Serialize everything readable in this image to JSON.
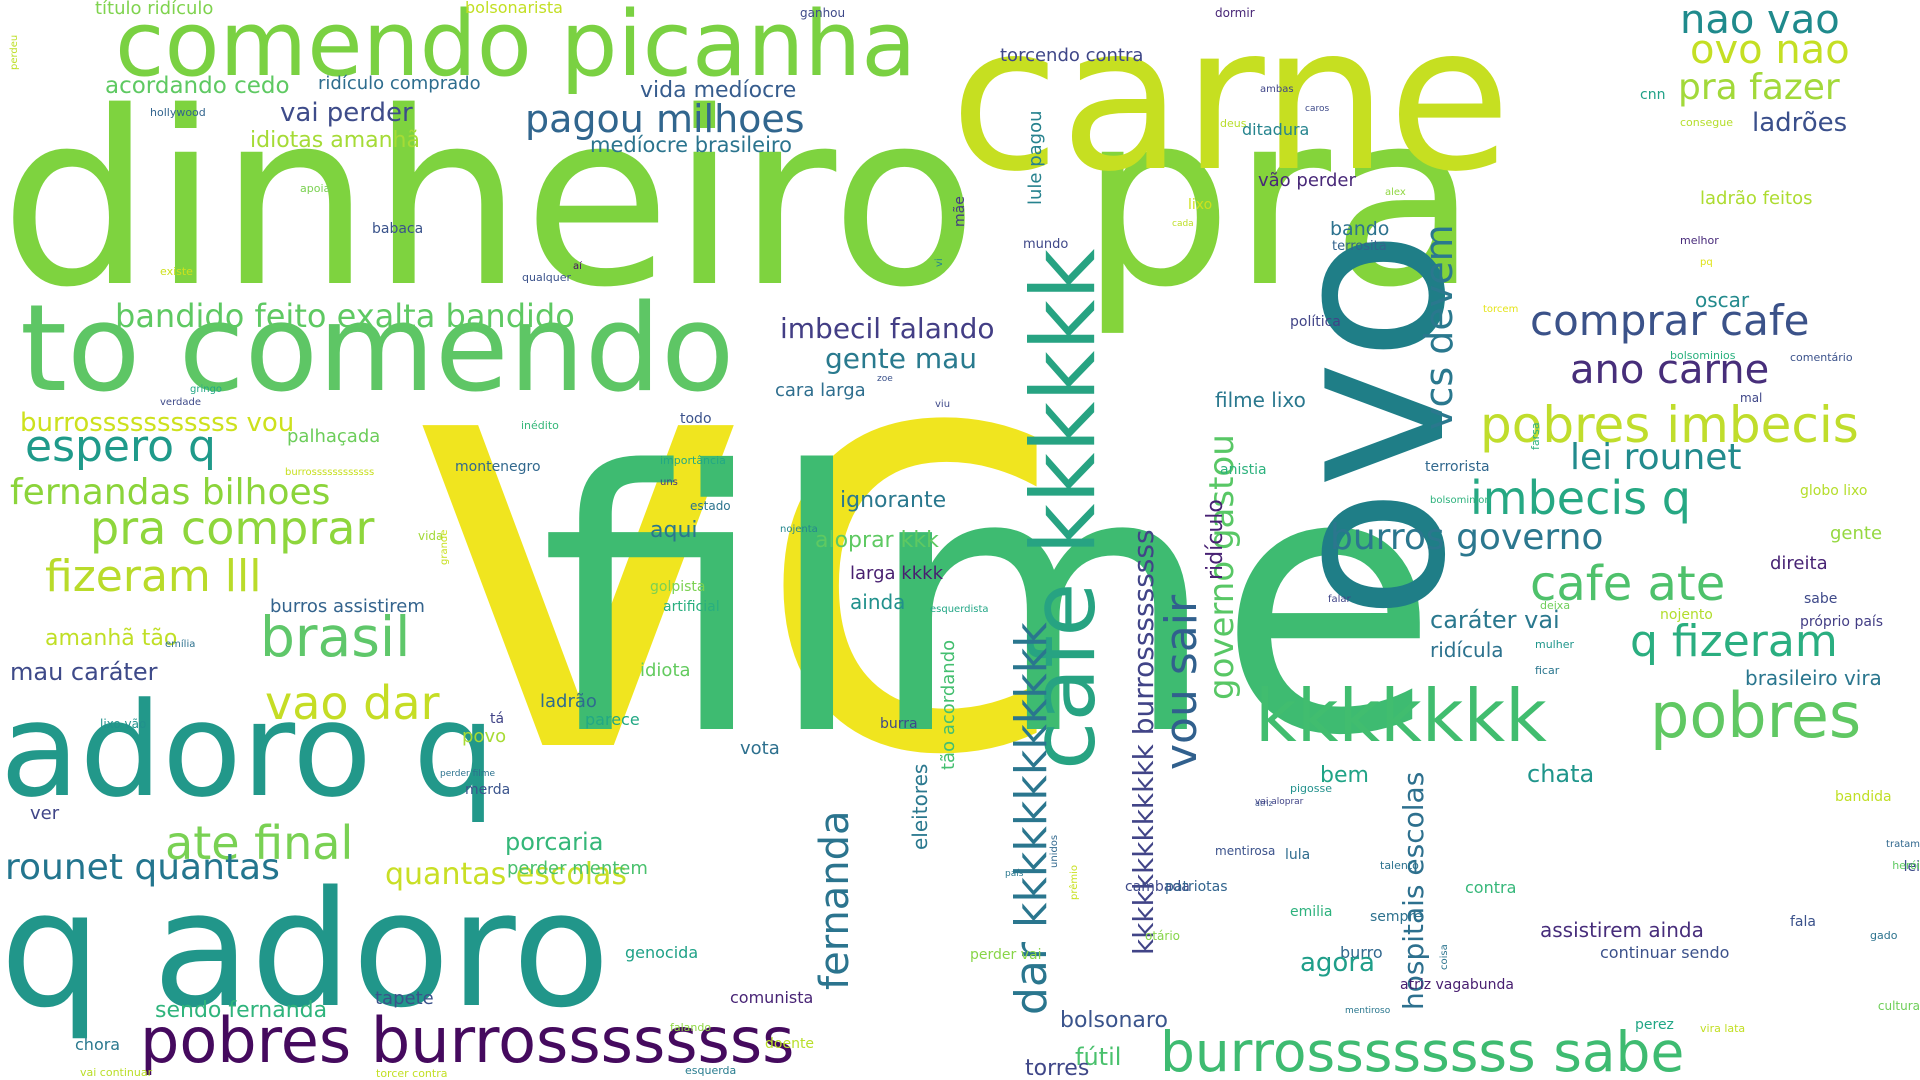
{
  "words": [
    {
      "text": "vc",
      "color": "#f0e51f"
    },
    {
      "text": "filme",
      "color": "#3ebb71"
    },
    {
      "text": "dinheiro",
      "color": "#7ed33f"
    },
    {
      "text": "pra",
      "color": "#84d43b"
    },
    {
      "text": "carne",
      "color": "#c6df21"
    },
    {
      "text": "ovo",
      "color": "#1f7e87"
    },
    {
      "text": "q adoro",
      "color": "#21968a"
    },
    {
      "text": "adoro q",
      "color": "#22988a"
    },
    {
      "text": "to comendo",
      "color": "#5ec665"
    },
    {
      "text": "comendo picanha",
      "color": "#7ad142"
    },
    {
      "text": "pobres burrossssssss",
      "color": "#450a5e"
    },
    {
      "text": "burrossssssss sabe",
      "color": "#3ebb71"
    },
    {
      "text": "cafe kkkkkk",
      "color": "#27a382"
    },
    {
      "text": "kkkkkkk",
      "color": "#41bd6f"
    },
    {
      "text": "pobres",
      "color": "#60c863"
    },
    {
      "text": "nao vao",
      "color": "#1f8a8c"
    },
    {
      "text": "ovo nao",
      "color": "#c4df24"
    },
    {
      "text": "pra fazer",
      "color": "#a2d93a"
    },
    {
      "text": "ladrões",
      "color": "#3a4f8b"
    },
    {
      "text": "comprar cafe",
      "color": "#3b5289"
    },
    {
      "text": "ano carne",
      "color": "#472e7a"
    },
    {
      "text": "pobres imbecis",
      "color": "#c0dd2c"
    },
    {
      "text": "lei rounet",
      "color": "#228b8d"
    },
    {
      "text": "imbecis q",
      "color": "#26a883"
    },
    {
      "text": "burros governo",
      "color": "#2b778e"
    },
    {
      "text": "cafe ate",
      "color": "#4ec16b"
    },
    {
      "text": "q fizeram",
      "color": "#2aae80"
    },
    {
      "text": "pagou milhoes",
      "color": "#31668e"
    },
    {
      "text": "brasil",
      "color": "#5fc76a"
    },
    {
      "text": "vao dar",
      "color": "#c5dd25"
    },
    {
      "text": "espero q",
      "color": "#1f9a8a"
    },
    {
      "text": "fernandas bilhoes",
      "color": "#8bd43a"
    },
    {
      "text": "pra comprar",
      "color": "#8ed63c"
    },
    {
      "text": "fizeram lll",
      "color": "#b9db2a"
    },
    {
      "text": "ate final",
      "color": "#79d153"
    },
    {
      "text": "rounet quantas",
      "color": "#23758e"
    },
    {
      "text": "quantas escolas",
      "color": "#c9df25"
    },
    {
      "text": "bandido feito exalta bandido",
      "color": "#5ec962"
    },
    {
      "text": "burrosssssssssss vou",
      "color": "#cde11d"
    },
    {
      "text": "imbecil falando",
      "color": "#433e85"
    },
    {
      "text": "gente mau",
      "color": "#297a8e"
    },
    {
      "text": "vou sair",
      "color": "#31608d"
    },
    {
      "text": "governo gastou",
      "color": "#58c765"
    },
    {
      "text": "vcs devem",
      "color": "#2a788e"
    },
    {
      "text": "dar kkkkkkkkkkkk",
      "color": "#2a768e"
    },
    {
      "text": "kkkkkkkkkkkkk burrosssssssss",
      "color": "#414487"
    },
    {
      "text": "fernanda",
      "color": "#2b748e"
    },
    {
      "text": "hospitais escolas",
      "color": "#2d708e"
    },
    {
      "text": "acordando cedo",
      "color": "#5ec962"
    },
    {
      "text": "vai perder",
      "color": "#3e4c8a"
    },
    {
      "text": "idiotas amanhã",
      "color": "#a5db36"
    },
    {
      "text": "vida medíocre",
      "color": "#365c8d"
    },
    {
      "text": "medíocre brasileiro",
      "color": "#2b748e"
    },
    {
      "text": "torcendo contra",
      "color": "#3f4788"
    },
    {
      "text": "ridículo comprado",
      "color": "#2e6d8e"
    },
    {
      "text": "título ridículo",
      "color": "#7fd34e"
    },
    {
      "text": "bolsonarista",
      "color": "#c2df23"
    },
    {
      "text": "ganhou",
      "color": "#3e4989"
    },
    {
      "text": "dormir",
      "color": "#482677"
    },
    {
      "text": "perdeu",
      "color": "#bddf26"
    },
    {
      "text": "hollywood",
      "color": "#32648e"
    },
    {
      "text": "ambas",
      "color": "#404688"
    },
    {
      "text": "caros",
      "color": "#3e4a89"
    },
    {
      "text": "cnn",
      "color": "#1fa187"
    },
    {
      "text": "consegue",
      "color": "#b5de2b"
    },
    {
      "text": "deus",
      "color": "#b8de29"
    },
    {
      "text": "ditadura",
      "color": "#25848e"
    },
    {
      "text": "vão perder",
      "color": "#482878"
    },
    {
      "text": "alex",
      "color": "#90d743"
    },
    {
      "text": "ladrão feitos",
      "color": "#addc30"
    },
    {
      "text": "lule pagou",
      "color": "#26828e"
    },
    {
      "text": "lixo",
      "color": "#cde11d"
    },
    {
      "text": "cada",
      "color": "#bddf26"
    },
    {
      "text": "bando",
      "color": "#2c728e"
    },
    {
      "text": "terrosita",
      "color": "#33638d"
    },
    {
      "text": "melhor",
      "color": "#472a7a"
    },
    {
      "text": "pq",
      "color": "#dfe318"
    },
    {
      "text": "mundo",
      "color": "#3f4889"
    },
    {
      "text": "babaca",
      "color": "#3a538b"
    },
    {
      "text": "apoia",
      "color": "#7ad151"
    },
    {
      "text": "existe",
      "color": "#cde11d"
    },
    {
      "text": "qualquer",
      "color": "#3b528b"
    },
    {
      "text": "aí",
      "color": "#471164"
    },
    {
      "text": "oscar",
      "color": "#238a8d"
    },
    {
      "text": "torcem",
      "color": "#e5e419"
    },
    {
      "text": "política",
      "color": "#414487"
    },
    {
      "text": "bolsominios",
      "color": "#2ab07f"
    },
    {
      "text": "comentário",
      "color": "#3b528b"
    },
    {
      "text": "verdade",
      "color": "#3e4a89"
    },
    {
      "text": "gringo",
      "color": "#22a785"
    },
    {
      "text": "zoe",
      "color": "#3b528b"
    },
    {
      "text": "cara larga",
      "color": "#2e6e8e"
    },
    {
      "text": "filme lixo",
      "color": "#2a788e"
    },
    {
      "text": "mal",
      "color": "#3f4788"
    },
    {
      "text": "inédito",
      "color": "#35b779"
    },
    {
      "text": "todo",
      "color": "#3b528b"
    },
    {
      "text": "palhaçada",
      "color": "#6ccd5a"
    },
    {
      "text": "viu",
      "color": "#3e4989"
    },
    {
      "text": "farsa",
      "color": "#2db27d"
    },
    {
      "text": "montenegro",
      "color": "#31688e"
    },
    {
      "text": "importância",
      "color": "#22a884"
    },
    {
      "text": "uns",
      "color": "#443983"
    },
    {
      "text": "terrorista",
      "color": "#31688e"
    },
    {
      "text": "anistia",
      "color": "#2db27d"
    },
    {
      "text": "burrossssssssssss",
      "color": "#c8e020"
    },
    {
      "text": "estado",
      "color": "#2c738e"
    },
    {
      "text": "nojenta",
      "color": "#24878e"
    },
    {
      "text": "ignorante",
      "color": "#2a788e"
    },
    {
      "text": "bolsominion",
      "color": "#2db27d"
    },
    {
      "text": "globo lixo",
      "color": "#b5de2b"
    },
    {
      "text": "aqui",
      "color": "#2a768e"
    },
    {
      "text": "aloprar kkk",
      "color": "#5ec962"
    },
    {
      "text": "gente",
      "color": "#95d840"
    },
    {
      "text": "direita",
      "color": "#482475"
    },
    {
      "text": "vida",
      "color": "#a2da37"
    },
    {
      "text": "grande",
      "color": "#c8e020"
    },
    {
      "text": "golpista",
      "color": "#7ad151"
    },
    {
      "text": "larga kkkk",
      "color": "#481f70"
    },
    {
      "text": "ainda",
      "color": "#21918c"
    },
    {
      "text": "artificial",
      "color": "#29af7f"
    },
    {
      "text": "falar",
      "color": "#404588"
    },
    {
      "text": "deixa",
      "color": "#6ece58"
    },
    {
      "text": "sabe",
      "color": "#3e4989"
    },
    {
      "text": "burros assistirem",
      "color": "#33638d"
    },
    {
      "text": "esquerdista",
      "color": "#21a685"
    },
    {
      "text": "nojento",
      "color": "#b2dd2d"
    },
    {
      "text": "próprio país",
      "color": "#433e85"
    },
    {
      "text": "caráter vai",
      "color": "#2a788e"
    },
    {
      "text": "amanhã tão",
      "color": "#c0df25"
    },
    {
      "text": "emília",
      "color": "#2c718e"
    },
    {
      "text": "mulher",
      "color": "#1f968b"
    },
    {
      "text": "ridícula",
      "color": "#2c728e"
    },
    {
      "text": "brasileiro vira",
      "color": "#2a768e"
    },
    {
      "text": "mau caráter",
      "color": "#3e4a89"
    },
    {
      "text": "idiota",
      "color": "#63cb5f"
    },
    {
      "text": "ficar",
      "color": "#2a768e"
    },
    {
      "text": "ladrão",
      "color": "#2f6b8e"
    },
    {
      "text": "parece",
      "color": "#22a884"
    },
    {
      "text": "eleitores",
      "color": "#2a788e"
    },
    {
      "text": "tão acordando",
      "color": "#44bf70"
    },
    {
      "text": "povo",
      "color": "#a8db34"
    },
    {
      "text": "lixo vão",
      "color": "#21918c"
    },
    {
      "text": "tá",
      "color": "#414487"
    },
    {
      "text": "burra",
      "color": "#3e4989"
    },
    {
      "text": "vota",
      "color": "#2d708e"
    },
    {
      "text": "bem",
      "color": "#20a386"
    },
    {
      "text": "chata",
      "color": "#1f958b"
    },
    {
      "text": "perder filme",
      "color": "#2c728e"
    },
    {
      "text": "atriz",
      "color": "#3a538b"
    },
    {
      "text": "vai aloprar",
      "color": "#414487"
    },
    {
      "text": "merda",
      "color": "#3a548c"
    },
    {
      "text": "pigosse",
      "color": "#21918c"
    },
    {
      "text": "bandida",
      "color": "#c0df25"
    },
    {
      "text": "ver",
      "color": "#404688"
    },
    {
      "text": "porcaria",
      "color": "#35b779"
    },
    {
      "text": "perder mentem",
      "color": "#4ac16d"
    },
    {
      "text": "lula",
      "color": "#2f6c8e"
    },
    {
      "text": "tratam",
      "color": "#31688e"
    },
    {
      "text": "mentirosa",
      "color": "#3b528b"
    },
    {
      "text": "lei",
      "color": "#3e4c8a"
    },
    {
      "text": "talento",
      "color": "#2c728e"
    },
    {
      "text": "herói",
      "color": "#5ec962"
    },
    {
      "text": "prêmio",
      "color": "#c8e020"
    },
    {
      "text": "cambada",
      "color": "#3e4a89"
    },
    {
      "text": "país",
      "color": "#2a788e"
    },
    {
      "text": "unidos",
      "color": "#31688e"
    },
    {
      "text": "patriotas",
      "color": "#32648e"
    },
    {
      "text": "contra",
      "color": "#35b779"
    },
    {
      "text": "emilia",
      "color": "#2db27d"
    },
    {
      "text": "sempre",
      "color": "#2c718e"
    },
    {
      "text": "fala",
      "color": "#3b528b"
    },
    {
      "text": "gado",
      "color": "#2c738e"
    },
    {
      "text": "coisa",
      "color": "#2b748e"
    },
    {
      "text": "perder vai",
      "color": "#88d548"
    },
    {
      "text": "genocida",
      "color": "#1fa287"
    },
    {
      "text": "burro",
      "color": "#31688e"
    },
    {
      "text": "assistirem ainda",
      "color": "#472d7b"
    },
    {
      "text": "otário",
      "color": "#86d549"
    },
    {
      "text": "agora",
      "color": "#1f9e89"
    },
    {
      "text": "continuar sendo",
      "color": "#3b518b"
    },
    {
      "text": "atriz vagabunda",
      "color": "#471d6f"
    },
    {
      "text": "cultura",
      "color": "#6ece58"
    },
    {
      "text": "sendo fernanda",
      "color": "#2fb47c"
    },
    {
      "text": "tapete",
      "color": "#3b528b"
    },
    {
      "text": "comunista",
      "color": "#482475"
    },
    {
      "text": "bolsonaro",
      "color": "#3a548c"
    },
    {
      "text": "perez",
      "color": "#21a685"
    },
    {
      "text": "falando",
      "color": "#8fd744"
    },
    {
      "text": "doente",
      "color": "#b8de29"
    },
    {
      "text": "mentiroso",
      "color": "#2a778e"
    },
    {
      "text": "vira lata",
      "color": "#c2df23"
    },
    {
      "text": "chora",
      "color": "#2a788e"
    },
    {
      "text": "fútil",
      "color": "#4ac16d"
    },
    {
      "text": "torres",
      "color": "#3f4788"
    },
    {
      "text": "vai continuar",
      "color": "#bade28"
    },
    {
      "text": "torcer contra",
      "color": "#c2df23"
    },
    {
      "text": "esquerda",
      "color": "#287c8e"
    },
    {
      "text": "ridículo",
      "color": "#482173"
    },
    {
      "text": "mãe",
      "color": "#443a83"
    },
    {
      "text": "vi",
      "color": "#25858e"
    }
  ]
}
